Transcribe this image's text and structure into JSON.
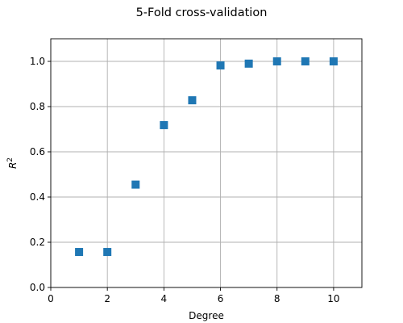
{
  "chart_data": {
    "type": "scatter",
    "title": "5-Fold cross-validation",
    "xlabel": "Degree",
    "ylabel": "R²",
    "xlim": [
      0,
      11
    ],
    "ylim": [
      0,
      1.1
    ],
    "xticks": [
      0,
      2,
      4,
      6,
      8,
      10
    ],
    "xtick_labels": [
      "0",
      "2",
      "4",
      "6",
      "8",
      "10"
    ],
    "yticks": [
      0.0,
      0.2,
      0.4,
      0.6,
      0.8,
      1.0
    ],
    "ytick_labels": [
      "0.0",
      "0.2",
      "0.4",
      "0.6",
      "0.8",
      "1.0"
    ],
    "grid": true,
    "marker": "square",
    "color": "#1f77b4",
    "series": [
      {
        "x": [
          1,
          2,
          3,
          4,
          5,
          6,
          7,
          8,
          9,
          10
        ],
        "y": [
          0.157,
          0.157,
          0.455,
          0.718,
          0.828,
          0.982,
          0.99,
          1.0,
          1.0,
          1.0
        ]
      }
    ]
  }
}
